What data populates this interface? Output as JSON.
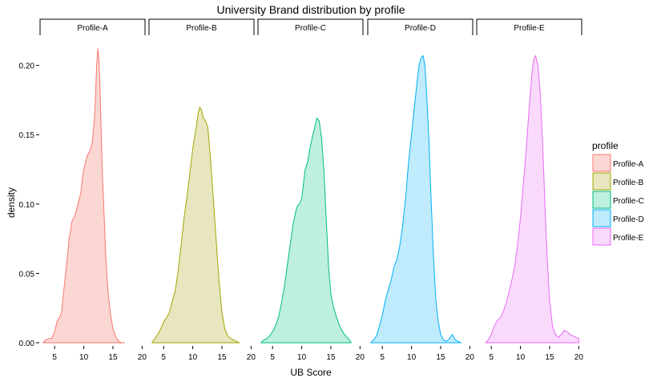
{
  "chart_data": {
    "type": "area",
    "title": "University Brand distribution by profile",
    "xlabel": "UB Score",
    "ylabel": "density",
    "xlim": [
      2.5,
      20.5
    ],
    "ylim": [
      0,
      0.22
    ],
    "x_ticks": [
      5,
      10,
      15,
      20
    ],
    "y_ticks": [
      0.0,
      0.05,
      0.1,
      0.15,
      0.2
    ],
    "y_tick_labels": [
      "0.00",
      "0.05",
      "0.10",
      "0.15",
      "0.20"
    ],
    "grid": false,
    "legend": {
      "title": "profile",
      "position": "right"
    },
    "series": [
      {
        "name": "Profile-A",
        "stroke": "#F8766D",
        "fill": "#FBD7D3",
        "x": [
          3.0,
          3.5,
          4.0,
          4.5,
          5.0,
          5.4,
          5.8,
          6.2,
          6.5,
          7.0,
          7.5,
          8.0,
          8.5,
          9.0,
          9.5,
          9.8,
          10.0,
          10.3,
          10.6,
          11.0,
          11.4,
          11.8,
          12.0,
          12.2,
          12.4,
          12.6,
          12.8,
          13.0,
          13.2,
          13.5,
          13.8,
          14.2,
          14.6,
          15.0,
          15.5,
          16.0,
          16.5,
          17.0
        ],
        "y": [
          0.0,
          0.002,
          0.003,
          0.003,
          0.008,
          0.015,
          0.018,
          0.022,
          0.035,
          0.055,
          0.075,
          0.088,
          0.092,
          0.1,
          0.108,
          0.12,
          0.125,
          0.13,
          0.135,
          0.138,
          0.143,
          0.16,
          0.176,
          0.2,
          0.212,
          0.205,
          0.18,
          0.15,
          0.12,
          0.09,
          0.06,
          0.035,
          0.02,
          0.01,
          0.004,
          0.001,
          0.0,
          0.0
        ]
      },
      {
        "name": "Profile-B",
        "stroke": "#A3A500",
        "fill": "#E7E6BF",
        "x": [
          3.0,
          3.5,
          4.0,
          4.5,
          5.0,
          5.5,
          6.0,
          6.5,
          7.0,
          7.5,
          8.0,
          8.5,
          9.0,
          9.5,
          10.0,
          10.3,
          10.6,
          10.9,
          11.2,
          11.5,
          11.8,
          12.2,
          12.6,
          13.0,
          13.5,
          14.0,
          14.5,
          15.0,
          15.5,
          16.0,
          16.5,
          17.0,
          17.5,
          18.0
        ],
        "y": [
          0.0,
          0.003,
          0.006,
          0.01,
          0.015,
          0.018,
          0.022,
          0.03,
          0.038,
          0.052,
          0.07,
          0.09,
          0.105,
          0.122,
          0.14,
          0.148,
          0.155,
          0.165,
          0.17,
          0.168,
          0.162,
          0.16,
          0.155,
          0.135,
          0.105,
          0.075,
          0.045,
          0.022,
          0.01,
          0.005,
          0.003,
          0.002,
          0.001,
          0.0
        ]
      },
      {
        "name": "Profile-C",
        "stroke": "#00BF7D",
        "fill": "#BFEFDE",
        "x": [
          3.0,
          3.5,
          4.0,
          4.5,
          5.0,
          5.5,
          6.0,
          6.5,
          7.0,
          7.5,
          8.0,
          8.5,
          9.0,
          9.3,
          9.6,
          10.0,
          10.3,
          10.6,
          11.0,
          11.4,
          11.8,
          12.2,
          12.6,
          13.0,
          13.4,
          13.8,
          14.2,
          14.6,
          15.0,
          15.5,
          16.0,
          16.5,
          17.0,
          17.5,
          18.0,
          18.5
        ],
        "y": [
          0.0,
          0.002,
          0.003,
          0.005,
          0.008,
          0.012,
          0.018,
          0.028,
          0.04,
          0.055,
          0.07,
          0.085,
          0.095,
          0.099,
          0.1,
          0.104,
          0.115,
          0.125,
          0.13,
          0.14,
          0.148,
          0.155,
          0.162,
          0.16,
          0.148,
          0.125,
          0.09,
          0.055,
          0.035,
          0.025,
          0.018,
          0.012,
          0.008,
          0.005,
          0.003,
          0.0
        ]
      },
      {
        "name": "Profile-D",
        "stroke": "#00B0F6",
        "fill": "#BFEBFD",
        "x": [
          3.0,
          3.5,
          4.0,
          4.5,
          5.0,
          5.5,
          6.0,
          6.5,
          7.0,
          7.5,
          8.0,
          8.5,
          9.0,
          9.5,
          10.0,
          10.5,
          11.0,
          11.3,
          11.6,
          12.0,
          12.3,
          12.6,
          13.0,
          13.4,
          13.8,
          14.2,
          14.6,
          15.0,
          15.5,
          16.0,
          16.5,
          17.0,
          17.5,
          18.0,
          18.5
        ],
        "y": [
          0.0,
          0.002,
          0.005,
          0.012,
          0.02,
          0.03,
          0.038,
          0.045,
          0.055,
          0.06,
          0.07,
          0.085,
          0.105,
          0.13,
          0.15,
          0.17,
          0.19,
          0.2,
          0.205,
          0.207,
          0.2,
          0.18,
          0.145,
          0.1,
          0.06,
          0.03,
          0.015,
          0.006,
          0.002,
          0.001,
          0.003,
          0.006,
          0.002,
          0.001,
          0.0
        ]
      },
      {
        "name": "Profile-E",
        "stroke": "#E76BF3",
        "fill": "#F9DAFC",
        "x": [
          4.0,
          4.5,
          5.0,
          5.5,
          6.0,
          6.5,
          7.0,
          7.5,
          8.0,
          8.5,
          9.0,
          9.5,
          10.0,
          10.5,
          11.0,
          11.5,
          12.0,
          12.3,
          12.6,
          13.0,
          13.4,
          13.8,
          14.2,
          14.6,
          15.0,
          15.5,
          16.0,
          16.5,
          17.0,
          17.5,
          18.0,
          18.5,
          19.0,
          19.5,
          20.0
        ],
        "y": [
          0.0,
          0.002,
          0.006,
          0.012,
          0.016,
          0.018,
          0.022,
          0.028,
          0.036,
          0.045,
          0.055,
          0.07,
          0.09,
          0.115,
          0.14,
          0.17,
          0.195,
          0.205,
          0.207,
          0.2,
          0.18,
          0.145,
          0.1,
          0.06,
          0.03,
          0.012,
          0.006,
          0.004,
          0.006,
          0.009,
          0.008,
          0.006,
          0.005,
          0.004,
          0.003
        ]
      }
    ]
  }
}
